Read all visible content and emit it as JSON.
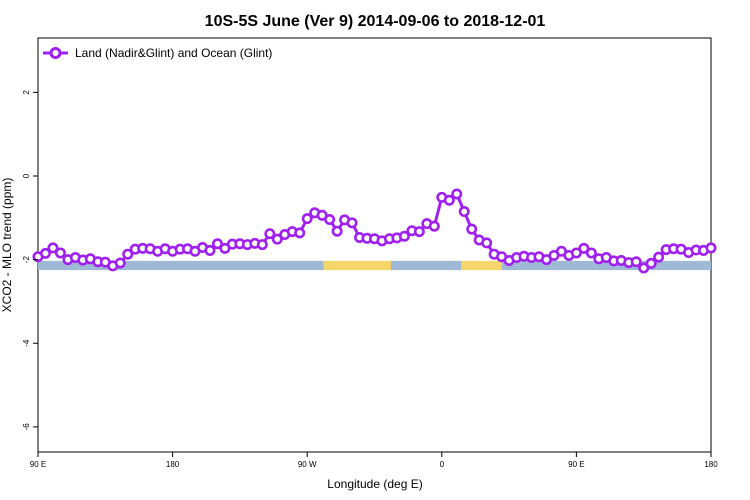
{
  "chart_data": {
    "type": "line",
    "title": "10S-5S June (Ver 9)   2014-09-06 to 2018-12-01",
    "xlabel": "Longitude (deg E)",
    "ylabel": "XCO2 - MLO trend (ppm)",
    "x_axis": {
      "ticks": [
        90,
        180,
        270,
        360,
        450,
        540
      ],
      "tick_labels": [
        "90 E",
        "180",
        "90 W",
        "0",
        "90 E",
        "180"
      ],
      "xlim": [
        90,
        540
      ]
    },
    "y_axis": {
      "ticks": [
        2,
        0,
        -2,
        -4,
        -6
      ],
      "tick_labels": [
        "2",
        "0",
        "-2",
        "-4",
        "-6"
      ],
      "ylim": [
        -6.6,
        3.3
      ]
    },
    "grid": false,
    "legend_position": "top-left",
    "colors": {
      "series": "#a020f0",
      "ocean": "#9fb8d6",
      "land": "#f5d66a"
    },
    "series": [
      {
        "name": "Land (Nadir&Glint) and Ocean (Glint)",
        "x": [
          90,
          95,
          100,
          105,
          110,
          115,
          120,
          125,
          130,
          135,
          140,
          145,
          150,
          155,
          160,
          165,
          170,
          175,
          180,
          185,
          190,
          195,
          200,
          205,
          210,
          215,
          220,
          225,
          230,
          235,
          240,
          245,
          250,
          255,
          260,
          265,
          270,
          275,
          280,
          285,
          290,
          295,
          300,
          305,
          310,
          315,
          320,
          325,
          330,
          335,
          340,
          345,
          350,
          355,
          360,
          365,
          370,
          375,
          380,
          385,
          390,
          395,
          400,
          405,
          410,
          415,
          420,
          425,
          430,
          435,
          440,
          445,
          450,
          455,
          460,
          465,
          470,
          475,
          480,
          485,
          490,
          495,
          500,
          505,
          510,
          515,
          520,
          525,
          530,
          535,
          540
        ],
        "y": [
          -1.93,
          -1.85,
          -1.72,
          -1.84,
          -2.0,
          -1.95,
          -2.01,
          -1.98,
          -2.05,
          -2.06,
          -2.15,
          -2.08,
          -1.87,
          -1.75,
          -1.73,
          -1.74,
          -1.8,
          -1.74,
          -1.8,
          -1.75,
          -1.74,
          -1.8,
          -1.71,
          -1.78,
          -1.62,
          -1.73,
          -1.63,
          -1.62,
          -1.64,
          -1.61,
          -1.64,
          -1.38,
          -1.51,
          -1.4,
          -1.33,
          -1.36,
          -1.02,
          -0.88,
          -0.94,
          -1.04,
          -1.32,
          -1.05,
          -1.12,
          -1.47,
          -1.49,
          -1.5,
          -1.55,
          -1.5,
          -1.48,
          -1.44,
          -1.31,
          -1.33,
          -1.14,
          -1.2,
          -0.51,
          -0.58,
          -0.43,
          -0.85,
          -1.27,
          -1.53,
          -1.6,
          -1.87,
          -1.93,
          -2.02,
          -1.95,
          -1.92,
          -1.95,
          -1.93,
          -2.0,
          -1.9,
          -1.8,
          -1.9,
          -1.84,
          -1.73,
          -1.84,
          -1.98,
          -1.95,
          -2.03,
          -2.02,
          -2.07,
          -2.05,
          -2.2,
          -2.09,
          -1.94,
          -1.76,
          -1.74,
          -1.75,
          -1.83,
          -1.77,
          -1.78,
          -1.72
        ]
      }
    ],
    "land_ocean_band": [
      {
        "type": "ocean",
        "from": 90,
        "to": 281
      },
      {
        "type": "land",
        "from": 281,
        "to": 326
      },
      {
        "type": "ocean",
        "from": 326,
        "to": 373
      },
      {
        "type": "land",
        "from": 373,
        "to": 400
      },
      {
        "type": "ocean",
        "from": 400,
        "to": 540
      }
    ]
  }
}
